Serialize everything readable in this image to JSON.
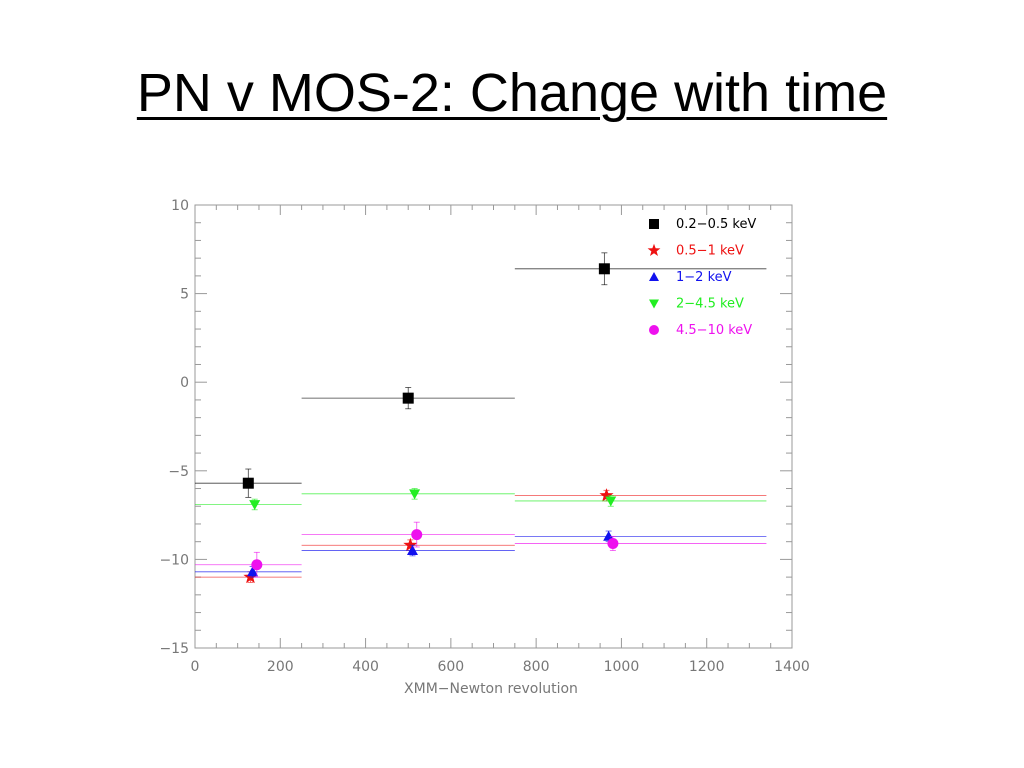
{
  "slide": {
    "title": "PN v MOS-2: Change with time"
  },
  "chart_data": {
    "type": "scatter",
    "title": "",
    "xlabel": "XMM−Newton revolution",
    "ylabel": "",
    "xlim": [
      0,
      1400
    ],
    "ylim": [
      -15,
      10
    ],
    "xticks": [
      0,
      200,
      400,
      600,
      800,
      1000,
      1200,
      1400
    ],
    "yticks": [
      -15,
      -10,
      -5,
      0,
      5,
      10
    ],
    "ytick_labels": [
      "−15",
      "−10",
      "−5",
      "0",
      "5",
      "10"
    ],
    "grid": false,
    "legend_position": "top-right",
    "series": [
      {
        "name": "0.2−0.5 keV",
        "color": "#000000",
        "marker": "square",
        "points": [
          {
            "x": 125,
            "xmin": 0,
            "xmax": 250,
            "y": -5.7,
            "yerr": 0.8
          },
          {
            "x": 500,
            "xmin": 250,
            "xmax": 750,
            "y": -0.9,
            "yerr": 0.6
          },
          {
            "x": 960,
            "xmin": 750,
            "xmax": 1340,
            "y": 6.4,
            "yerr": 0.9
          }
        ]
      },
      {
        "name": "0.5−1 keV",
        "color": "#ee1111",
        "marker": "star",
        "points": [
          {
            "x": 130,
            "xmin": 0,
            "xmax": 250,
            "y": -11.0,
            "yerr": 0.3
          },
          {
            "x": 505,
            "xmin": 250,
            "xmax": 750,
            "y": -9.2,
            "yerr": 0.3
          },
          {
            "x": 965,
            "xmin": 750,
            "xmax": 1340,
            "y": -6.4,
            "yerr": 0.3
          }
        ]
      },
      {
        "name": "1−2 keV",
        "color": "#1111ee",
        "marker": "triangle-up",
        "points": [
          {
            "x": 135,
            "xmin": 0,
            "xmax": 250,
            "y": -10.7,
            "yerr": 0.3
          },
          {
            "x": 510,
            "xmin": 250,
            "xmax": 750,
            "y": -9.5,
            "yerr": 0.3
          },
          {
            "x": 970,
            "xmin": 750,
            "xmax": 1340,
            "y": -8.7,
            "yerr": 0.3
          }
        ]
      },
      {
        "name": "2−4.5 keV",
        "color": "#22ee22",
        "marker": "triangle-down",
        "points": [
          {
            "x": 140,
            "xmin": 0,
            "xmax": 250,
            "y": -6.9,
            "yerr": 0.3
          },
          {
            "x": 515,
            "xmin": 250,
            "xmax": 750,
            "y": -6.3,
            "yerr": 0.3
          },
          {
            "x": 975,
            "xmin": 750,
            "xmax": 1340,
            "y": -6.7,
            "yerr": 0.3
          }
        ]
      },
      {
        "name": "4.5−10 keV",
        "color": "#ee11ee",
        "marker": "circle",
        "points": [
          {
            "x": 145,
            "xmin": 0,
            "xmax": 250,
            "y": -10.3,
            "yerr": 0.7
          },
          {
            "x": 520,
            "xmin": 250,
            "xmax": 750,
            "y": -8.6,
            "yerr": 0.7
          },
          {
            "x": 980,
            "xmin": 750,
            "xmax": 1340,
            "y": -9.1,
            "yerr": 0.4
          }
        ]
      }
    ]
  }
}
